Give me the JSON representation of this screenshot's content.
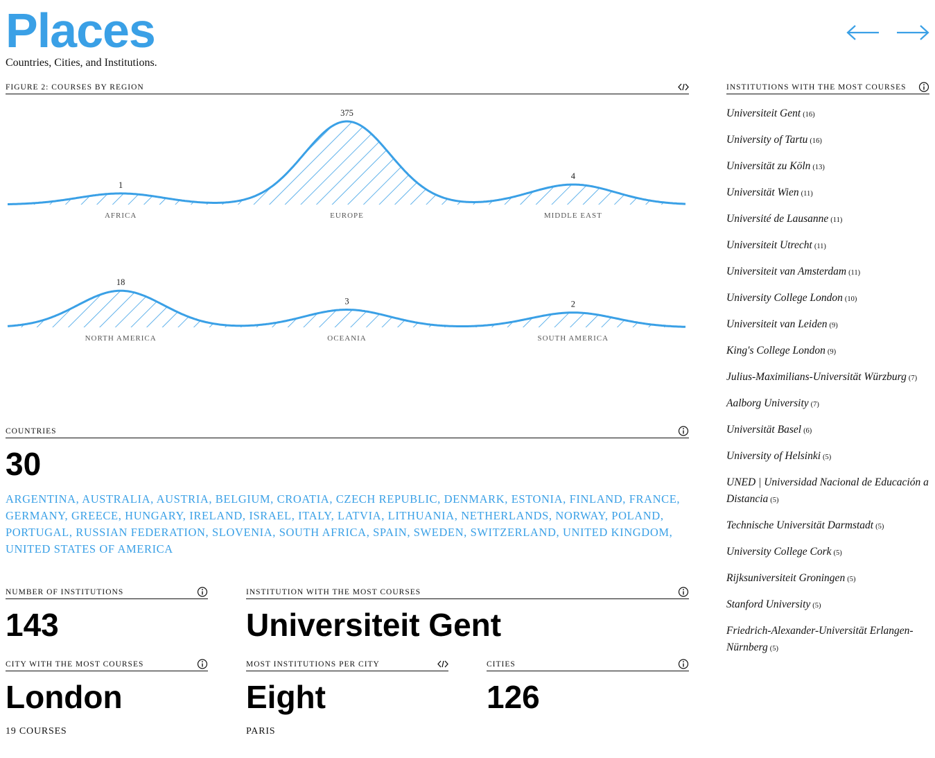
{
  "page": {
    "title": "Places",
    "subtitle": "Countries, Cities, and Institutions.",
    "nav": {
      "prev_icon": "arrow-left-icon",
      "next_icon": "arrow-right-icon"
    }
  },
  "figure": {
    "label": "FIGURE 2: COURSES BY REGION",
    "icon": "embed-code-icon"
  },
  "chart_data": {
    "type": "area",
    "title": "FIGURE 2: COURSES BY REGION",
    "rows": [
      {
        "regions": [
          {
            "name": "AFRICA",
            "value": 1
          },
          {
            "name": "EUROPE",
            "value": 375
          },
          {
            "name": "MIDDLE EAST",
            "value": 4
          }
        ]
      },
      {
        "regions": [
          {
            "name": "NORTH AMERICA",
            "value": 18
          },
          {
            "name": "OCEANIA",
            "value": 3
          },
          {
            "name": "SOUTH AMERICA",
            "value": 2
          }
        ]
      }
    ],
    "colors": {
      "stroke": "#3aa0e6",
      "hatch": "#3aa0e6"
    }
  },
  "countries": {
    "label": "COUNTRIES",
    "icon": "info-icon",
    "count": "30",
    "list": [
      "ARGENTINA",
      "AUSTRALIA",
      "AUSTRIA",
      "BELGIUM",
      "CROATIA",
      "CZECH REPUBLIC",
      "DENMARK",
      "ESTONIA",
      "FINLAND",
      "FRANCE",
      "GERMANY",
      "GREECE",
      "HUNGARY",
      "IRELAND",
      "ISRAEL",
      "ITALY",
      "LATVIA",
      "LITHUANIA",
      "NETHERLANDS",
      "NORWAY",
      "POLAND",
      "PORTUGAL",
      "RUSSIAN FEDERATION",
      "SLOVENIA",
      "SOUTH AFRICA",
      "SPAIN",
      "SWEDEN",
      "SWITZERLAND",
      "UNITED KINGDOM",
      "UNITED STATES OF AMERICA"
    ]
  },
  "stats": {
    "institutions": {
      "label": "NUMBER OF INSTITUTIONS",
      "icon": "info-icon",
      "value": "143"
    },
    "top_institution": {
      "label": "INSTITUTION WITH THE MOST COURSES",
      "icon": "info-icon",
      "value": "Universiteit Gent"
    },
    "top_city": {
      "label": "CITY WITH THE MOST COURSES",
      "icon": "info-icon",
      "value": "London",
      "caption": "19 COURSES"
    },
    "most_institutions_city": {
      "label": "MOST INSTITUTIONS PER CITY",
      "icon": "embed-code-icon",
      "value": "Eight",
      "caption": "PARIS"
    },
    "cities": {
      "label": "CITIES",
      "icon": "info-icon",
      "value": "126"
    }
  },
  "sidebar": {
    "label": "INSTITUTIONS WITH THE MOST COURSES",
    "icon": "info-icon",
    "items": [
      {
        "name": "Universiteit Gent",
        "count": "(16)"
      },
      {
        "name": "University of Tartu",
        "count": "(16)"
      },
      {
        "name": "Universität zu Köln",
        "count": "(13)"
      },
      {
        "name": "Universität Wien",
        "count": "(11)"
      },
      {
        "name": "Université de Lausanne",
        "count": "(11)"
      },
      {
        "name": "Universiteit Utrecht",
        "count": "(11)"
      },
      {
        "name": "Universiteit van Amsterdam",
        "count": "(11)"
      },
      {
        "name": "University College London",
        "count": "(10)"
      },
      {
        "name": "Universiteit van Leiden",
        "count": "(9)"
      },
      {
        "name": "King's College London",
        "count": "(9)"
      },
      {
        "name": "Julius-Maximilians-Universität Würzburg",
        "count": "(7)"
      },
      {
        "name": "Aalborg University",
        "count": "(7)"
      },
      {
        "name": "Universität Basel",
        "count": "(6)"
      },
      {
        "name": "University of Helsinki",
        "count": "(5)"
      },
      {
        "name": "UNED | Universidad Nacional de Educación a Distancia",
        "count": "(5)"
      },
      {
        "name": "Technische Universität Darmstadt",
        "count": "(5)"
      },
      {
        "name": "University College Cork",
        "count": "(5)"
      },
      {
        "name": "Rijksuniversiteit Groningen",
        "count": "(5)"
      },
      {
        "name": "Stanford University",
        "count": "(5)"
      },
      {
        "name": "Friedrich-Alexander-Universität Erlangen-Nürnberg",
        "count": "(5)"
      }
    ]
  }
}
